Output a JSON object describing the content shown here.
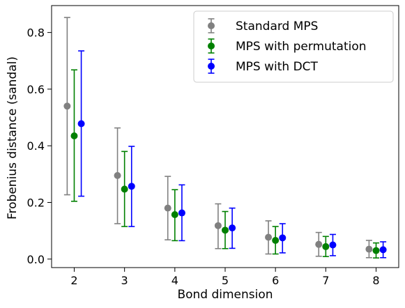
{
  "chart_data": {
    "type": "scatter",
    "title": "",
    "xlabel": "Bond dimension",
    "ylabel": "Frobenius distance (sandal)",
    "x": [
      2,
      3,
      4,
      5,
      6,
      7,
      8
    ],
    "xlim": [
      1.55,
      8.45
    ],
    "ylim": [
      -0.03,
      0.895
    ],
    "x_ticks": [
      2,
      3,
      4,
      5,
      6,
      7,
      8
    ],
    "y_ticks": [
      0.0,
      0.2,
      0.4,
      0.6,
      0.8
    ],
    "grid": false,
    "legend_position": "top-right",
    "error_bars": true,
    "series": [
      {
        "name": "Standard MPS",
        "color": "#808080",
        "values": [
          0.54,
          0.295,
          0.18,
          0.118,
          0.077,
          0.052,
          0.035
        ],
        "err_low": [
          0.227,
          0.125,
          0.068,
          0.037,
          0.018,
          0.01,
          0.005
        ],
        "err_high": [
          0.853,
          0.463,
          0.292,
          0.195,
          0.135,
          0.094,
          0.066
        ]
      },
      {
        "name": "MPS with permutation",
        "color": "#008000",
        "values": [
          0.435,
          0.247,
          0.157,
          0.102,
          0.066,
          0.044,
          0.03
        ],
        "err_low": [
          0.204,
          0.115,
          0.065,
          0.037,
          0.018,
          0.009,
          0.004
        ],
        "err_high": [
          0.668,
          0.38,
          0.245,
          0.168,
          0.115,
          0.08,
          0.057
        ]
      },
      {
        "name": "MPS with DCT",
        "color": "#0000ff",
        "values": [
          0.478,
          0.257,
          0.163,
          0.11,
          0.075,
          0.05,
          0.033
        ],
        "err_low": [
          0.222,
          0.115,
          0.065,
          0.038,
          0.022,
          0.012,
          0.005
        ],
        "err_high": [
          0.735,
          0.398,
          0.262,
          0.18,
          0.125,
          0.087,
          0.061
        ]
      }
    ]
  }
}
